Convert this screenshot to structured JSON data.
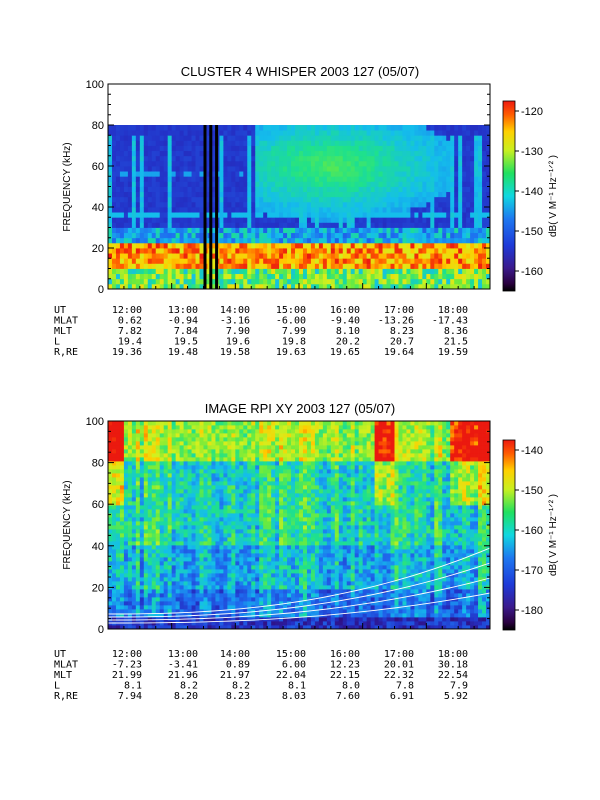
{
  "chart_data": [
    {
      "type": "heatmap",
      "title": "CLUSTER 4 WHISPER 2003 127 (05/07)",
      "ylabel": "FREQUENCY (kHz)",
      "ylim": [
        0,
        100
      ],
      "yticks": [
        "0",
        "20",
        "40",
        "60",
        "80",
        "100"
      ],
      "x_ticks": [
        "12:00",
        "13:00",
        "14:00",
        "15:00",
        "16:00",
        "17:00",
        "18:00"
      ],
      "colorbar": {
        "label": "dB( V M⁻¹ Hz⁻¹ᐟ² )",
        "range": [
          -167,
          -117
        ],
        "ticks": [
          "-120",
          "-130",
          "-140",
          "-150",
          "-160"
        ]
      },
      "ephemeris": [
        {
          "label": "UT",
          "values": [
            "12:00",
            "13:00",
            "14:00",
            "15:00",
            "16:00",
            "17:00",
            "18:00"
          ]
        },
        {
          "label": "MLAT",
          "values": [
            "0.62",
            "-0.94",
            "-3.16",
            "-6.00",
            "-9.40",
            "-13.26",
            "-17.43"
          ]
        },
        {
          "label": "MLT",
          "values": [
            "7.82",
            "7.84",
            "7.90",
            "7.99",
            "8.10",
            "8.23",
            "8.36"
          ]
        },
        {
          "label": "L",
          "values": [
            "19.4",
            "19.5",
            "19.6",
            "19.8",
            "20.2",
            "20.7",
            "21.5"
          ]
        },
        {
          "label": "R,RE",
          "values": [
            "19.36",
            "19.48",
            "19.58",
            "19.63",
            "19.65",
            "19.64",
            "19.59"
          ]
        }
      ]
    },
    {
      "type": "heatmap",
      "title": "IMAGE RPI XY 2003 127 (05/07)",
      "ylabel": "FREQUENCY (kHz)",
      "ylim": [
        0,
        100
      ],
      "yticks": [
        "0",
        "20",
        "40",
        "60",
        "80",
        "100"
      ],
      "x_ticks": [
        "12:00",
        "13:00",
        "14:00",
        "15:00",
        "16:00",
        "17:00",
        "18:00"
      ],
      "colorbar": {
        "label": "dB( V M⁻¹ Hz⁻¹ᐟ² )",
        "range": [
          -185,
          -135
        ],
        "ticks": [
          "-140",
          "-150",
          "-160",
          "-170",
          "-180"
        ]
      },
      "ephemeris": [
        {
          "label": "UT",
          "values": [
            "12:00",
            "13:00",
            "14:00",
            "15:00",
            "16:00",
            "17:00",
            "18:00"
          ]
        },
        {
          "label": "MLAT",
          "values": [
            "-7.23",
            "-3.41",
            "0.89",
            "6.00",
            "12.23",
            "20.01",
            "30.18"
          ]
        },
        {
          "label": "MLT",
          "values": [
            "21.99",
            "21.96",
            "21.97",
            "22.04",
            "22.15",
            "22.32",
            "22.54"
          ]
        },
        {
          "label": "L",
          "values": [
            "8.1",
            "8.2",
            "8.2",
            "8.1",
            "8.0",
            "7.8",
            "7.9"
          ]
        },
        {
          "label": "R,RE",
          "values": [
            "7.94",
            "8.20",
            "8.23",
            "8.03",
            "7.60",
            "6.91",
            "5.92"
          ]
        }
      ]
    }
  ]
}
